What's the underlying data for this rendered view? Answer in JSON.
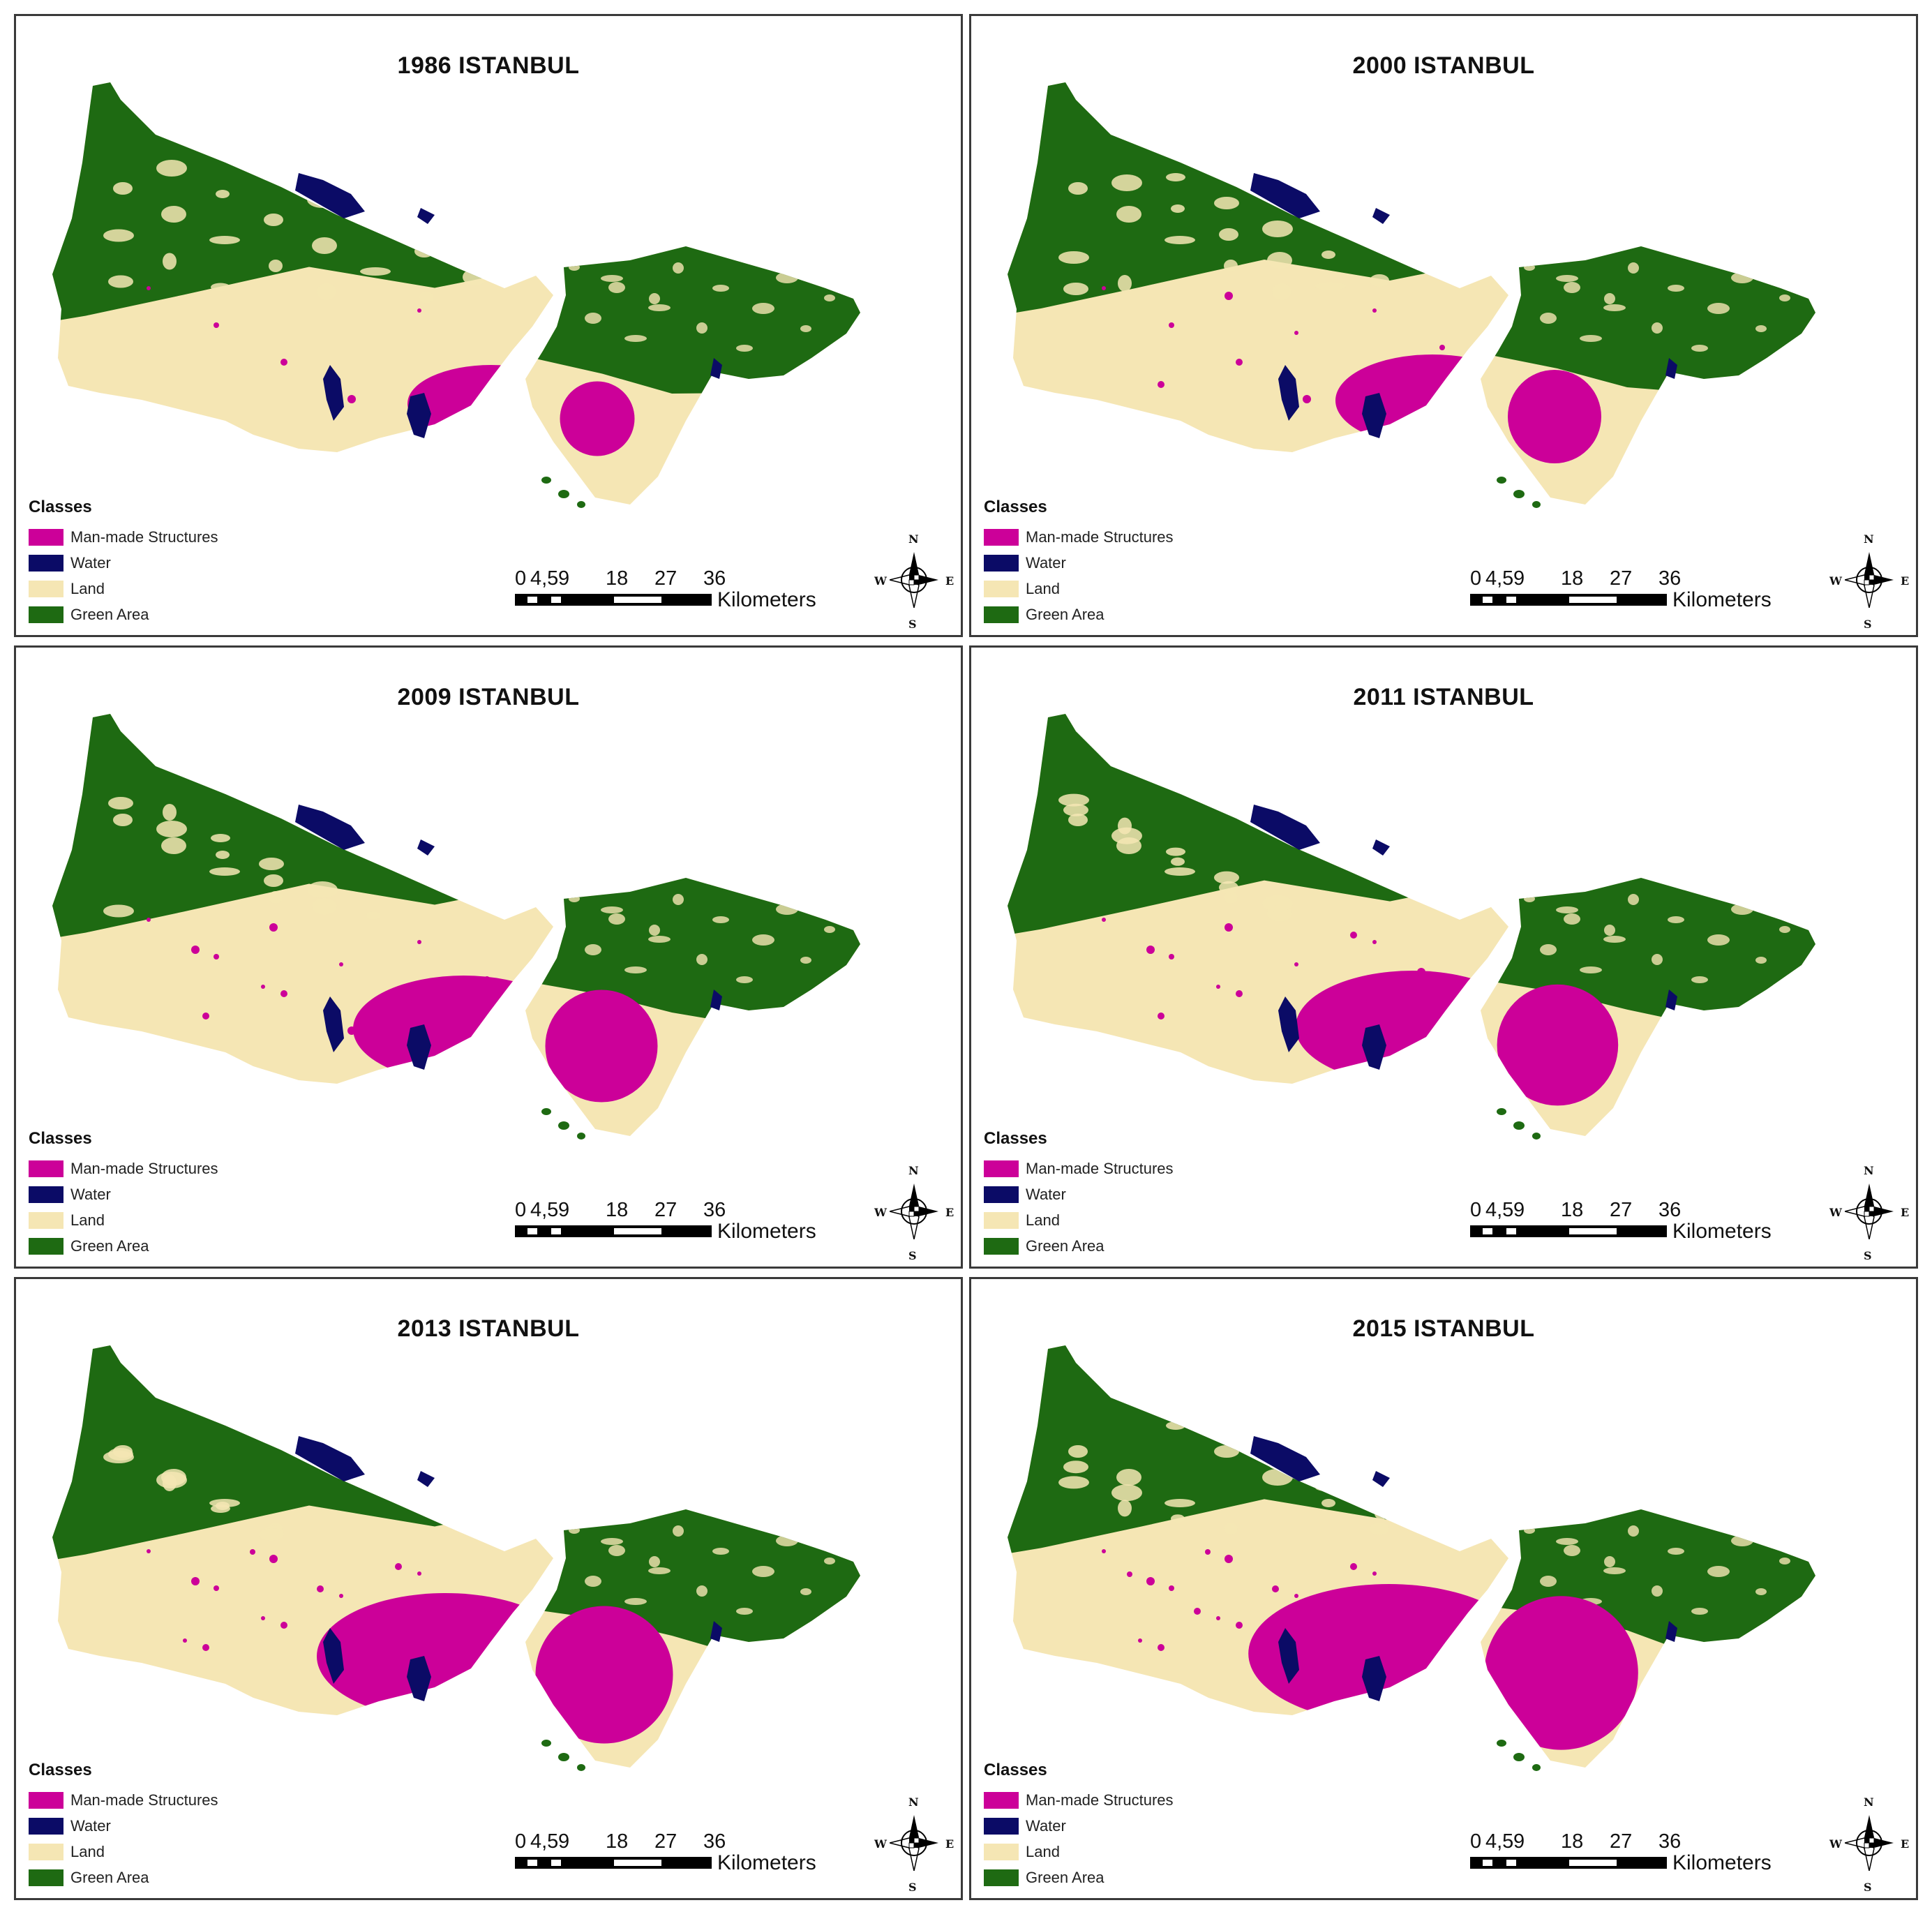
{
  "colors": {
    "man_made": "#cc0099",
    "water": "#0b0b66",
    "land": "#f5e6b4",
    "green": "#1e6a12"
  },
  "panels": [
    {
      "title": "1986 ISTANBUL",
      "urban_level": 0.15
    },
    {
      "title": "2000 ISTANBUL",
      "urban_level": 0.3
    },
    {
      "title": "2009 ISTANBUL",
      "urban_level": 0.45
    },
    {
      "title": "2011 ISTANBUL",
      "urban_level": 0.52
    },
    {
      "title": "2013 ISTANBUL",
      "urban_level": 0.65
    },
    {
      "title": "2015 ISTANBUL",
      "urban_level": 0.78
    }
  ],
  "legend": {
    "title": "Classes",
    "items": [
      {
        "label": "Man-made Structures",
        "color": "#cc0099"
      },
      {
        "label": "Water",
        "color": "#0b0b66"
      },
      {
        "label": "Land",
        "color": "#f5e6b4"
      },
      {
        "label": "Green Area",
        "color": "#1e6a12"
      }
    ]
  },
  "scalebar": {
    "ticks": [
      "0",
      "4,5",
      "9",
      "18",
      "27",
      "36"
    ],
    "unit": "Kilometers"
  },
  "compass": {
    "n": "N",
    "s": "S",
    "e": "E",
    "w": "W",
    "icon": "north-arrow-icon"
  }
}
